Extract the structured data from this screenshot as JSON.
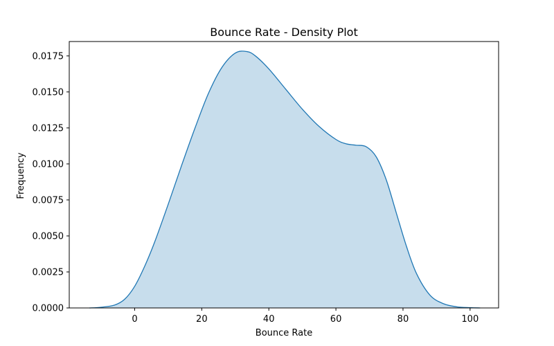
{
  "chart_data": {
    "type": "area",
    "title": "Bounce Rate - Density Plot",
    "xlabel": "Bounce Rate",
    "ylabel": "Frequency",
    "xlim": [
      -19.5,
      108.5
    ],
    "ylim": [
      0,
      0.0185
    ],
    "x_ticks": [
      0,
      20,
      40,
      60,
      80,
      100
    ],
    "x_tick_labels": [
      "0",
      "20",
      "40",
      "60",
      "80",
      "100"
    ],
    "y_ticks": [
      0,
      0.0025,
      0.005,
      0.0075,
      0.01,
      0.0125,
      0.015,
      0.0175
    ],
    "y_tick_labels": [
      "0.0000",
      "0.0025",
      "0.0050",
      "0.0075",
      "0.0100",
      "0.0125",
      "0.0150",
      "0.0175"
    ],
    "grid": false,
    "legend": "none",
    "line_color": "#1f77b4",
    "fill_color": "#1f77b4",
    "fill_opacity": 0.25,
    "series": [
      {
        "x": [
          -13.5,
          -10,
          -6,
          -3,
          0,
          3,
          6,
          10,
          14,
          18,
          22,
          26,
          30,
          33.5,
          36,
          40,
          45,
          50,
          55,
          60,
          63,
          66,
          69,
          72,
          75,
          78,
          81,
          84,
          88,
          92,
          96,
          100,
          103
        ],
        "y": [
          0,
          5e-05,
          0.0002,
          0.0006,
          0.0015,
          0.0029,
          0.0046,
          0.0072,
          0.0099,
          0.0125,
          0.0149,
          0.0167,
          0.0177,
          0.0178,
          0.0175,
          0.0166,
          0.0152,
          0.0138,
          0.0126,
          0.0117,
          0.0114,
          0.0113,
          0.0112,
          0.0105,
          0.0089,
          0.0066,
          0.0043,
          0.0024,
          0.0009,
          0.0003,
          8e-05,
          2e-05,
          0
        ]
      }
    ]
  }
}
